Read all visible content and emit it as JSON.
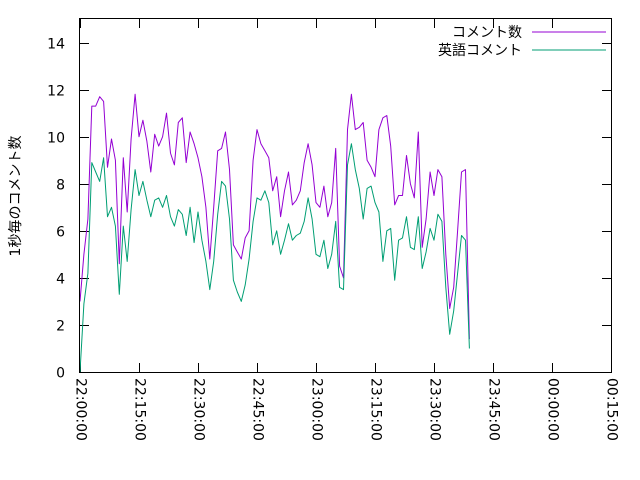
{
  "chart_data": {
    "type": "line",
    "ylabel": "1秒毎のコメント数",
    "xlabel": "",
    "ylim": [
      0,
      15
    ],
    "xlim_minutes": [
      0,
      135
    ],
    "yticks": [
      0,
      2,
      4,
      6,
      8,
      10,
      12,
      14
    ],
    "xticks": [
      {
        "minute": 0,
        "label": "22:00:00"
      },
      {
        "minute": 15,
        "label": "22:15:00"
      },
      {
        "minute": 30,
        "label": "22:30:00"
      },
      {
        "minute": 45,
        "label": "22:45:00"
      },
      {
        "minute": 60,
        "label": "23:00:00"
      },
      {
        "minute": 75,
        "label": "23:15:00"
      },
      {
        "minute": 90,
        "label": "23:30:00"
      },
      {
        "minute": 105,
        "label": "23:45:00"
      },
      {
        "minute": 120,
        "label": "00:00:00"
      },
      {
        "minute": 135,
        "label": "00:15:00"
      }
    ],
    "legend_position": "top-right",
    "grid": false,
    "series": [
      {
        "name": "コメント数",
        "color": "#9400d3",
        "points": [
          [
            0,
            3.0
          ],
          [
            1,
            5.0
          ],
          [
            2,
            6.5
          ],
          [
            3,
            11.3
          ],
          [
            4,
            11.3
          ],
          [
            5,
            11.7
          ],
          [
            6,
            11.5
          ],
          [
            7,
            8.7
          ],
          [
            8,
            9.9
          ],
          [
            9,
            9.0
          ],
          [
            10,
            4.6
          ],
          [
            11,
            9.1
          ],
          [
            12,
            6.8
          ],
          [
            13,
            9.9
          ],
          [
            14,
            11.8
          ],
          [
            15,
            10.0
          ],
          [
            16,
            10.7
          ],
          [
            17,
            9.8
          ],
          [
            18,
            8.5
          ],
          [
            19,
            10.1
          ],
          [
            20,
            9.6
          ],
          [
            21,
            10.0
          ],
          [
            22,
            11.0
          ],
          [
            23,
            9.3
          ],
          [
            24,
            8.8
          ],
          [
            25,
            10.6
          ],
          [
            26,
            10.8
          ],
          [
            27,
            8.9
          ],
          [
            28,
            10.2
          ],
          [
            29,
            9.7
          ],
          [
            30,
            9.1
          ],
          [
            31,
            8.3
          ],
          [
            32,
            7.0
          ],
          [
            33,
            4.8
          ],
          [
            34,
            7.0
          ],
          [
            35,
            9.4
          ],
          [
            36,
            9.5
          ],
          [
            37,
            10.2
          ],
          [
            38,
            8.6
          ],
          [
            39,
            5.4
          ],
          [
            40,
            5.1
          ],
          [
            41,
            4.8
          ],
          [
            42,
            5.7
          ],
          [
            43,
            6.0
          ],
          [
            44,
            9.0
          ],
          [
            45,
            10.3
          ],
          [
            46,
            9.7
          ],
          [
            47,
            9.4
          ],
          [
            48,
            9.1
          ],
          [
            49,
            7.7
          ],
          [
            50,
            8.3
          ],
          [
            51,
            6.6
          ],
          [
            52,
            7.7
          ],
          [
            53,
            8.5
          ],
          [
            54,
            7.1
          ],
          [
            55,
            7.3
          ],
          [
            56,
            7.7
          ],
          [
            57,
            8.9
          ],
          [
            58,
            9.7
          ],
          [
            59,
            8.8
          ],
          [
            60,
            7.2
          ],
          [
            61,
            7.0
          ],
          [
            62,
            7.9
          ],
          [
            63,
            6.6
          ],
          [
            64,
            7.2
          ],
          [
            65,
            9.5
          ],
          [
            66,
            4.5
          ],
          [
            67,
            4.0
          ],
          [
            68,
            10.3
          ],
          [
            69,
            11.8
          ],
          [
            70,
            10.3
          ],
          [
            71,
            10.4
          ],
          [
            72,
            10.6
          ],
          [
            73,
            9.0
          ],
          [
            74,
            8.7
          ],
          [
            75,
            8.3
          ],
          [
            76,
            10.3
          ],
          [
            77,
            10.8
          ],
          [
            78,
            10.9
          ],
          [
            79,
            9.6
          ],
          [
            80,
            7.1
          ],
          [
            81,
            7.5
          ],
          [
            82,
            7.5
          ],
          [
            83,
            9.2
          ],
          [
            84,
            8.0
          ],
          [
            85,
            7.4
          ],
          [
            86,
            10.2
          ],
          [
            87,
            5.3
          ],
          [
            88,
            6.5
          ],
          [
            89,
            8.5
          ],
          [
            90,
            7.5
          ],
          [
            91,
            8.6
          ],
          [
            92,
            8.3
          ],
          [
            93,
            5.0
          ],
          [
            94,
            2.7
          ],
          [
            95,
            3.6
          ],
          [
            96,
            6.0
          ],
          [
            97,
            8.5
          ],
          [
            98,
            8.6
          ],
          [
            99,
            1.4
          ]
        ]
      },
      {
        "name": "英語コメント",
        "color": "#009e73",
        "points": [
          [
            0,
            0.0
          ],
          [
            1,
            2.9
          ],
          [
            2,
            4.2
          ],
          [
            3,
            8.9
          ],
          [
            4,
            8.5
          ],
          [
            5,
            8.1
          ],
          [
            6,
            9.1
          ],
          [
            7,
            6.6
          ],
          [
            8,
            7.0
          ],
          [
            9,
            6.2
          ],
          [
            10,
            3.3
          ],
          [
            11,
            6.2
          ],
          [
            12,
            4.7
          ],
          [
            13,
            6.9
          ],
          [
            14,
            8.6
          ],
          [
            15,
            7.5
          ],
          [
            16,
            8.1
          ],
          [
            17,
            7.3
          ],
          [
            18,
            6.6
          ],
          [
            19,
            7.3
          ],
          [
            20,
            7.4
          ],
          [
            21,
            7.0
          ],
          [
            22,
            7.5
          ],
          [
            23,
            6.6
          ],
          [
            24,
            6.2
          ],
          [
            25,
            6.9
          ],
          [
            26,
            6.7
          ],
          [
            27,
            5.8
          ],
          [
            28,
            7.0
          ],
          [
            29,
            5.5
          ],
          [
            30,
            6.8
          ],
          [
            31,
            5.6
          ],
          [
            32,
            4.7
          ],
          [
            33,
            3.5
          ],
          [
            34,
            4.7
          ],
          [
            35,
            6.7
          ],
          [
            36,
            8.1
          ],
          [
            37,
            7.9
          ],
          [
            38,
            6.5
          ],
          [
            39,
            3.9
          ],
          [
            40,
            3.4
          ],
          [
            41,
            3.0
          ],
          [
            42,
            3.7
          ],
          [
            43,
            4.8
          ],
          [
            44,
            6.4
          ],
          [
            45,
            7.4
          ],
          [
            46,
            7.3
          ],
          [
            47,
            7.7
          ],
          [
            48,
            7.2
          ],
          [
            49,
            5.4
          ],
          [
            50,
            6.0
          ],
          [
            51,
            5.0
          ],
          [
            52,
            5.6
          ],
          [
            53,
            6.3
          ],
          [
            54,
            5.6
          ],
          [
            55,
            5.8
          ],
          [
            56,
            5.9
          ],
          [
            57,
            6.4
          ],
          [
            58,
            7.4
          ],
          [
            59,
            6.5
          ],
          [
            60,
            5.0
          ],
          [
            61,
            4.9
          ],
          [
            62,
            5.6
          ],
          [
            63,
            4.4
          ],
          [
            64,
            5.0
          ],
          [
            65,
            6.4
          ],
          [
            66,
            3.6
          ],
          [
            67,
            3.5
          ],
          [
            68,
            8.8
          ],
          [
            69,
            9.7
          ],
          [
            70,
            8.6
          ],
          [
            71,
            7.8
          ],
          [
            72,
            6.5
          ],
          [
            73,
            7.8
          ],
          [
            74,
            7.9
          ],
          [
            75,
            7.2
          ],
          [
            76,
            6.8
          ],
          [
            77,
            4.7
          ],
          [
            78,
            6.0
          ],
          [
            79,
            6.1
          ],
          [
            80,
            3.9
          ],
          [
            81,
            5.6
          ],
          [
            82,
            5.7
          ],
          [
            83,
            6.6
          ],
          [
            84,
            5.3
          ],
          [
            85,
            5.2
          ],
          [
            86,
            6.6
          ],
          [
            87,
            4.4
          ],
          [
            88,
            5.1
          ],
          [
            89,
            6.1
          ],
          [
            90,
            5.6
          ],
          [
            91,
            6.7
          ],
          [
            92,
            6.4
          ],
          [
            93,
            3.6
          ],
          [
            94,
            1.6
          ],
          [
            95,
            2.6
          ],
          [
            96,
            4.2
          ],
          [
            97,
            5.8
          ],
          [
            98,
            5.6
          ],
          [
            99,
            1.0
          ]
        ]
      }
    ]
  }
}
